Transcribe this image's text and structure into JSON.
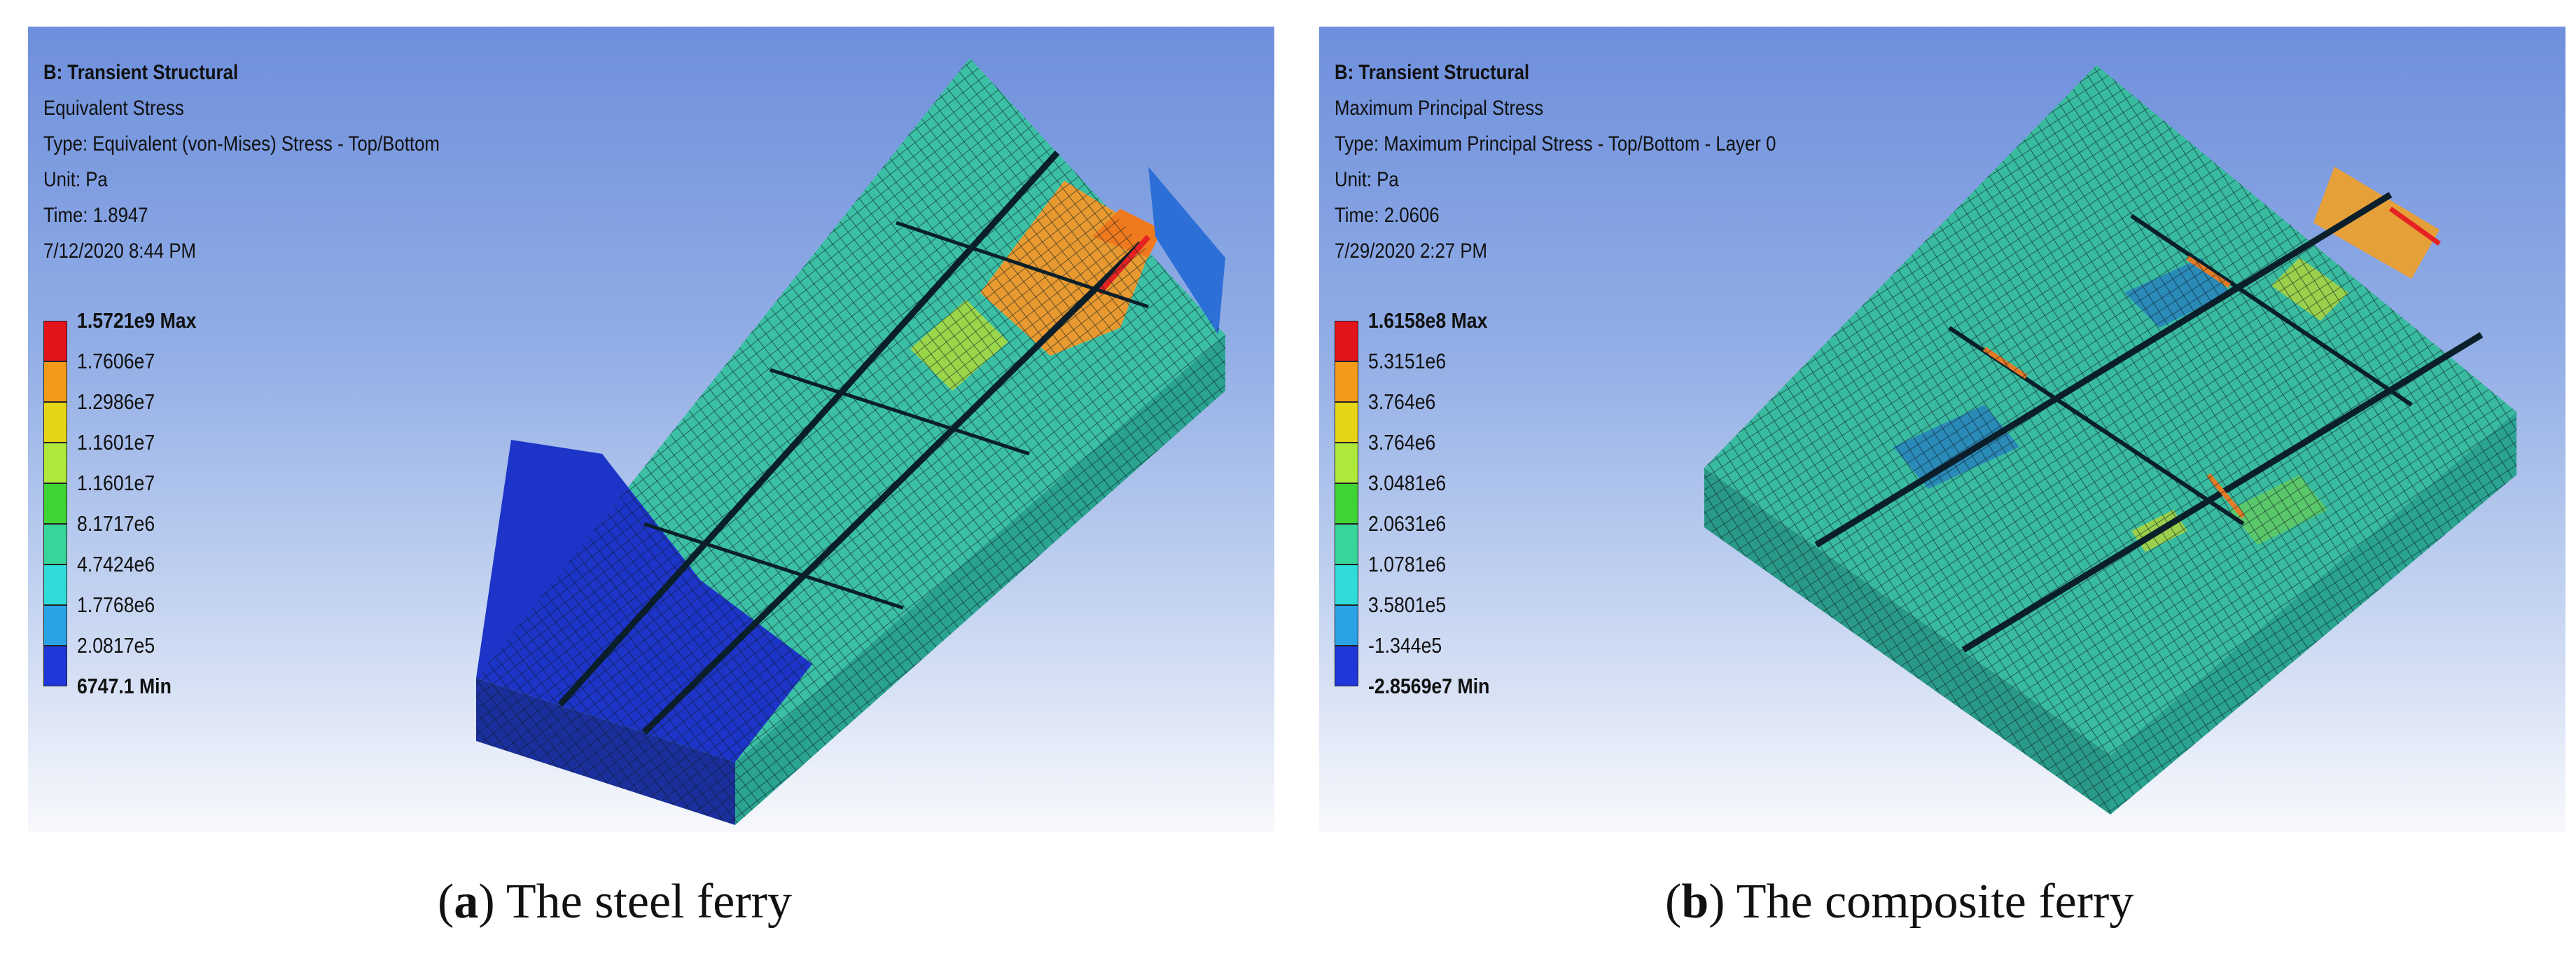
{
  "panel_a": {
    "title": "B: Transient Structural",
    "result_name": "Equivalent Stress",
    "type": "Type: Equivalent (von-Mises) Stress - Top/Bottom",
    "unit": "Unit: Pa",
    "time": "Time: 1.8947",
    "date": "7/12/2020 8:44 PM",
    "legend": [
      {
        "label": "1.5721e9 Max",
        "color": "#e3131b"
      },
      {
        "label": "1.7606e7",
        "color": "#f39a1a"
      },
      {
        "label": "1.2986e7",
        "color": "#e6d416"
      },
      {
        "label": "1.1601e7",
        "color": "#aee83a"
      },
      {
        "label": "1.1601e7",
        "color": "#3fd433"
      },
      {
        "label": "8.1717e6",
        "color": "#38d59a"
      },
      {
        "label": "4.7424e6",
        "color": "#2fdcd8"
      },
      {
        "label": "1.7768e6",
        "color": "#2aa3e6"
      },
      {
        "label": "2.0817e5",
        "color": "#1f37d8"
      },
      {
        "label": "6747.1 Min",
        "color": null
      }
    ],
    "caption_letter": "a",
    "caption_text": "The steel ferry"
  },
  "panel_b": {
    "title": "B: Transient Structural",
    "result_name": "Maximum Principal Stress",
    "type": "Type: Maximum Principal Stress - Top/Bottom - Layer 0",
    "unit": "Unit: Pa",
    "time": "Time: 2.0606",
    "date": "7/29/2020 2:27 PM",
    "legend": [
      {
        "label": "1.6158e8 Max",
        "color": "#e3131b"
      },
      {
        "label": "5.3151e6",
        "color": "#f39a1a"
      },
      {
        "label": "3.764e6",
        "color": "#e6d416"
      },
      {
        "label": "3.764e6",
        "color": "#aee83a"
      },
      {
        "label": "3.0481e6",
        "color": "#3fd433"
      },
      {
        "label": "2.0631e6",
        "color": "#38d59a"
      },
      {
        "label": "1.0781e6",
        "color": "#2fdcd8"
      },
      {
        "label": "3.5801e5",
        "color": "#2aa3e6"
      },
      {
        "label": "-1.344e5",
        "color": "#1f37d8"
      },
      {
        "label": "-2.8569e7 Min",
        "color": null
      }
    ],
    "caption_letter": "b",
    "caption_text": "The composite ferry"
  }
}
